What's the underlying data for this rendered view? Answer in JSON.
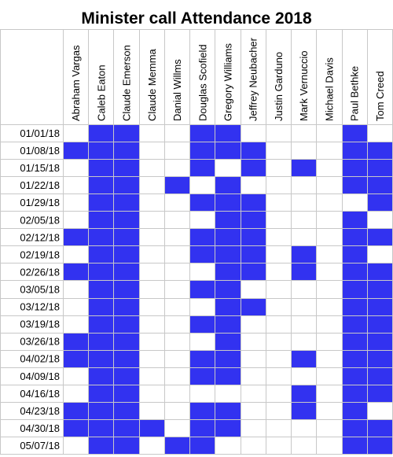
{
  "chart_data": {
    "type": "heatmap",
    "title": "Minister call Attendance 2018",
    "columns": [
      "Abraham Vargas",
      "Caleb Eaton",
      "Claude Emerson",
      "Claude Memma",
      "Danial Willms",
      "Douglas Scofield",
      "Gregory Williams",
      "Jeffrey Neubacher",
      "Justin Garduno",
      "Mark Vernuccio",
      "Michael Davis",
      "Paul Bethke",
      "Tom Creed"
    ],
    "rows": [
      "01/01/18",
      "01/08/18",
      "01/15/18",
      "01/22/18",
      "01/29/18",
      "02/05/18",
      "02/12/18",
      "02/19/18",
      "02/26/18",
      "03/05/18",
      "03/12/18",
      "03/19/18",
      "03/26/18",
      "04/02/18",
      "04/09/18",
      "04/16/18",
      "04/23/18",
      "04/30/18",
      "05/07/18"
    ],
    "values": [
      [
        0,
        1,
        1,
        0,
        0,
        1,
        1,
        0,
        0,
        0,
        0,
        1,
        0
      ],
      [
        1,
        1,
        1,
        0,
        0,
        1,
        1,
        1,
        0,
        0,
        0,
        1,
        1
      ],
      [
        0,
        1,
        1,
        0,
        0,
        1,
        0,
        1,
        0,
        1,
        0,
        1,
        1
      ],
      [
        0,
        1,
        1,
        0,
        1,
        0,
        1,
        0,
        0,
        0,
        0,
        1,
        1
      ],
      [
        0,
        1,
        1,
        0,
        0,
        1,
        1,
        1,
        0,
        0,
        0,
        0,
        1
      ],
      [
        0,
        1,
        1,
        0,
        0,
        0,
        1,
        1,
        0,
        0,
        0,
        1,
        0
      ],
      [
        1,
        1,
        1,
        0,
        0,
        1,
        1,
        1,
        0,
        0,
        0,
        1,
        1
      ],
      [
        0,
        1,
        1,
        0,
        0,
        1,
        1,
        1,
        0,
        1,
        0,
        1,
        0
      ],
      [
        1,
        1,
        1,
        0,
        0,
        0,
        1,
        1,
        0,
        1,
        0,
        1,
        1
      ],
      [
        0,
        1,
        1,
        0,
        0,
        1,
        1,
        0,
        0,
        0,
        0,
        1,
        1
      ],
      [
        0,
        1,
        1,
        0,
        0,
        0,
        1,
        1,
        0,
        0,
        0,
        1,
        1
      ],
      [
        0,
        1,
        1,
        0,
        0,
        1,
        1,
        0,
        0,
        0,
        0,
        1,
        1
      ],
      [
        1,
        1,
        1,
        0,
        0,
        0,
        1,
        0,
        0,
        0,
        0,
        1,
        1
      ],
      [
        1,
        1,
        1,
        0,
        0,
        1,
        1,
        0,
        0,
        1,
        0,
        1,
        1
      ],
      [
        0,
        1,
        1,
        0,
        0,
        1,
        1,
        0,
        0,
        0,
        0,
        1,
        1
      ],
      [
        0,
        1,
        1,
        0,
        0,
        0,
        0,
        0,
        0,
        1,
        0,
        1,
        1
      ],
      [
        1,
        1,
        1,
        0,
        0,
        1,
        1,
        0,
        0,
        1,
        0,
        1,
        0
      ],
      [
        1,
        1,
        1,
        1,
        0,
        1,
        1,
        0,
        0,
        0,
        0,
        1,
        1
      ],
      [
        0,
        1,
        1,
        0,
        1,
        1,
        0,
        0,
        0,
        0,
        0,
        1,
        1
      ]
    ],
    "colors": {
      "attended": "#3232f0",
      "absent": "#ffffff",
      "grid": "#c8c8c8"
    },
    "legend": "none",
    "grid": true
  }
}
